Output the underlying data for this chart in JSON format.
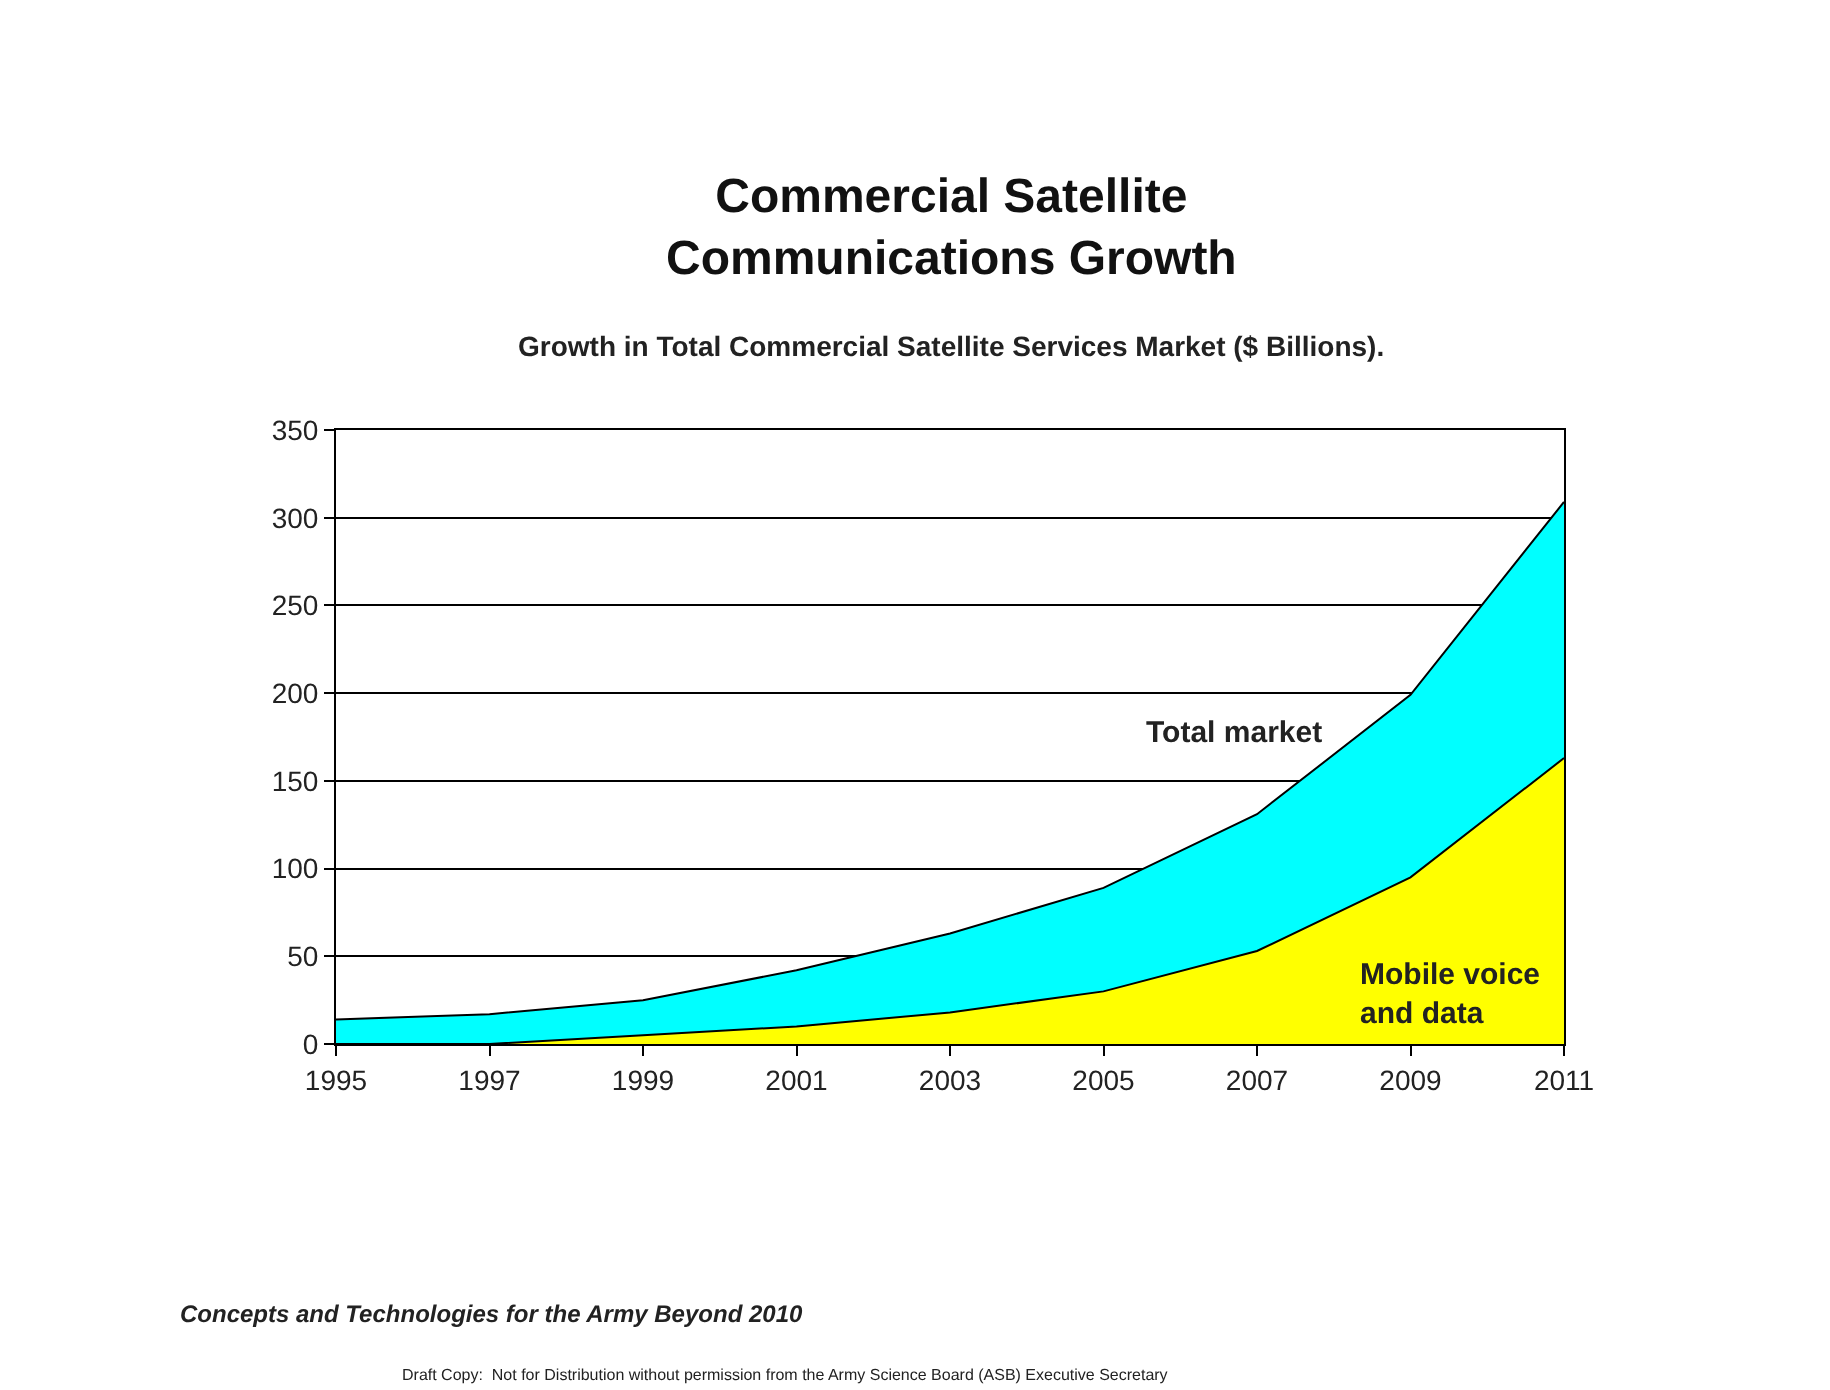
{
  "chart_data": {
    "type": "area",
    "title": "Commercial Satellite\nCommunications Growth",
    "subtitle": "Growth in Total Commercial Satellite Services Market ($ Billions).",
    "x": [
      1995,
      1997,
      1999,
      2001,
      2003,
      2005,
      2007,
      2009,
      2011
    ],
    "series": [
      {
        "name": "Total market",
        "color": "#00ffff",
        "values": [
          14,
          17,
          25,
          42,
          63,
          89,
          131,
          199,
          309
        ]
      },
      {
        "name": "Mobile voice and data",
        "color": "#ffff00",
        "values": [
          0,
          0,
          5,
          10,
          18,
          30,
          53,
          95,
          163
        ]
      }
    ],
    "xlim": [
      1995,
      2011
    ],
    "xticks": [
      1995,
      1997,
      1999,
      2001,
      2003,
      2005,
      2007,
      2009,
      2011
    ],
    "ylim": [
      0,
      350
    ],
    "yticks": [
      0,
      50,
      100,
      150,
      200,
      250,
      300,
      350
    ],
    "grid": "y",
    "legend": false,
    "annotations": [
      "Concepts and Technologies for the Army Beyond 2010",
      "Draft Copy:  Not for Distribution without permission from the Army Science Board (ASB) Executive Secretary"
    ]
  }
}
